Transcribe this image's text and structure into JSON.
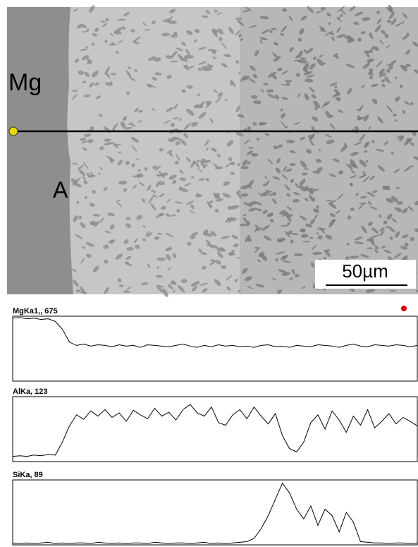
{
  "image": {
    "region_label": "Mg",
    "phase_label": "A",
    "scale_bar": "50µm"
  },
  "chart_data": [
    {
      "type": "line",
      "title": "MgKa1,, 675",
      "color": "#000000",
      "ylim": [
        0,
        100
      ],
      "values": [
        97,
        98,
        96,
        97,
        95,
        96,
        92,
        80,
        60,
        55,
        57,
        54,
        56,
        55,
        53,
        56,
        54,
        55,
        52,
        56,
        55,
        54,
        53,
        55,
        57,
        54,
        52,
        55,
        53,
        56,
        54,
        55,
        53,
        54,
        52,
        55,
        56,
        53,
        54,
        52,
        55,
        54,
        53,
        56,
        55,
        54,
        52,
        55,
        57,
        54,
        53,
        56,
        55,
        54,
        56,
        55,
        53,
        55
      ]
    },
    {
      "type": "line",
      "title": "AlKa, 123",
      "color": "#000000",
      "ylim": [
        0,
        100
      ],
      "values": [
        8,
        9,
        8,
        10,
        9,
        11,
        10,
        30,
        55,
        72,
        65,
        78,
        70,
        80,
        68,
        75,
        62,
        79,
        72,
        66,
        82,
        70,
        76,
        64,
        80,
        88,
        75,
        70,
        84,
        60,
        56,
        72,
        80,
        66,
        84,
        70,
        58,
        74,
        40,
        20,
        15,
        30,
        60,
        72,
        50,
        78,
        64,
        45,
        70,
        56,
        80,
        52,
        62,
        74,
        58,
        68,
        62,
        55
      ]
    },
    {
      "type": "line",
      "title": "SiKa, 89",
      "color": "#000000",
      "ylim": [
        0,
        100
      ],
      "values": [
        3,
        2,
        3,
        2,
        3,
        4,
        2,
        3,
        2,
        3,
        3,
        2,
        4,
        3,
        2,
        3,
        2,
        3,
        3,
        2,
        4,
        3,
        2,
        3,
        3,
        2,
        3,
        4,
        2,
        3,
        2,
        3,
        4,
        5,
        10,
        25,
        45,
        70,
        95,
        80,
        55,
        40,
        60,
        30,
        55,
        45,
        20,
        50,
        35,
        5,
        4,
        3,
        3,
        2,
        3,
        3,
        2,
        3
      ]
    }
  ]
}
